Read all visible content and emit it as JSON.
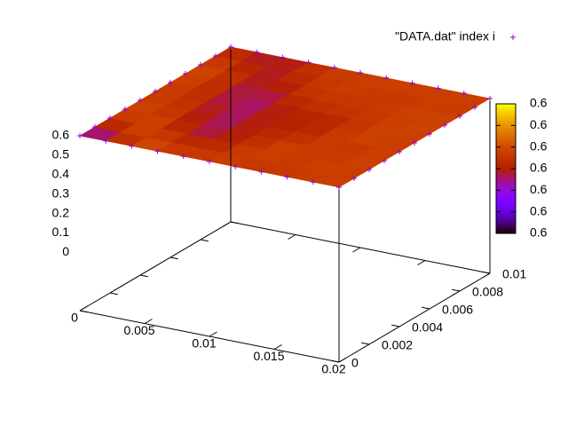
{
  "chart_data": {
    "type": "surface3d",
    "name": "\"DATA.dat\" index i",
    "color": "#9400d3",
    "x": [
      0,
      0.002,
      0.004,
      0.006,
      0.008,
      0.01,
      0.012,
      0.014,
      0.016,
      0.018,
      0.02
    ],
    "y": [
      0,
      0.001,
      0.002,
      0.003,
      0.004,
      0.005,
      0.006,
      0.007,
      0.008,
      0.009,
      0.01
    ],
    "z": [
      [
        0.5999,
        0.59995,
        0.60008,
        0.6001,
        0.60006,
        0.60009,
        0.60004,
        0.60008,
        0.60005,
        0.60009,
        0.60007
      ],
      [
        0.59993,
        0.60005,
        0.6001,
        0.60007,
        0.60003,
        0.60006,
        0.60009,
        0.60004,
        0.60008,
        0.60006,
        0.60008
      ],
      [
        0.60002,
        0.60009,
        0.60006,
        0.6,
        0.59998,
        0.60004,
        0.60007,
        0.60009,
        0.60006,
        0.6001,
        0.60005
      ],
      [
        0.60006,
        0.60011,
        0.60004,
        0.59997,
        0.59996,
        0.60001,
        0.60005,
        0.60008,
        0.60004,
        0.60007,
        0.60009
      ],
      [
        0.60008,
        0.60006,
        0.60001,
        0.59996,
        0.59998,
        0.60003,
        0.59999,
        0.60006,
        0.60009,
        0.60005,
        0.60008
      ],
      [
        0.60005,
        0.60009,
        0.60003,
        0.59995,
        0.59997,
        0.6,
        0.59998,
        0.60004,
        0.60007,
        0.6001,
        0.60006
      ],
      [
        0.60009,
        0.60004,
        0.59999,
        0.59994,
        0.59999,
        0.60002,
        0.60005,
        0.60002,
        0.60008,
        0.60006,
        0.60009
      ],
      [
        0.60007,
        0.6001,
        0.60002,
        0.59996,
        0.60001,
        0.60006,
        0.60004,
        0.60009,
        0.60005,
        0.60011,
        0.60007
      ],
      [
        0.6001,
        0.60006,
        0.6,
        0.59998,
        0.60004,
        0.60008,
        0.60006,
        0.60004,
        0.60009,
        0.60006,
        0.60008
      ],
      [
        0.60006,
        0.60003,
        0.59997,
        0.60001,
        0.60007,
        0.60005,
        0.60009,
        0.60007,
        0.60005,
        0.60008,
        0.60006
      ],
      [
        0.60004,
        0.6,
        0.59996,
        0.60003,
        0.60006,
        0.60009,
        0.60006,
        0.60008,
        0.6001,
        0.60007,
        0.60009
      ]
    ],
    "xlim": [
      0,
      0.02
    ],
    "xticks": [
      0,
      0.005,
      0.01,
      0.015,
      0.02
    ],
    "ylim": [
      0,
      0.01
    ],
    "yticks": [
      0,
      0.002,
      0.004,
      0.006,
      0.008,
      0.01
    ],
    "zlim": [
      0,
      0.6
    ],
    "zticks": [
      0,
      0.1,
      0.2,
      0.3,
      0.4,
      0.5,
      0.6
    ],
    "cblim": [
      0.5997,
      0.6003
    ],
    "cbticks": [
      {
        "value": 0.5997,
        "label": "0.6"
      },
      {
        "value": 0.5998,
        "label": "0.6"
      },
      {
        "value": 0.5999,
        "label": "0.6"
      },
      {
        "value": 0.6,
        "label": "0.6"
      },
      {
        "value": 0.6001,
        "label": "0.6"
      },
      {
        "value": 0.6002,
        "label": "0.6"
      },
      {
        "value": 0.6003,
        "label": "0.6"
      }
    ]
  }
}
